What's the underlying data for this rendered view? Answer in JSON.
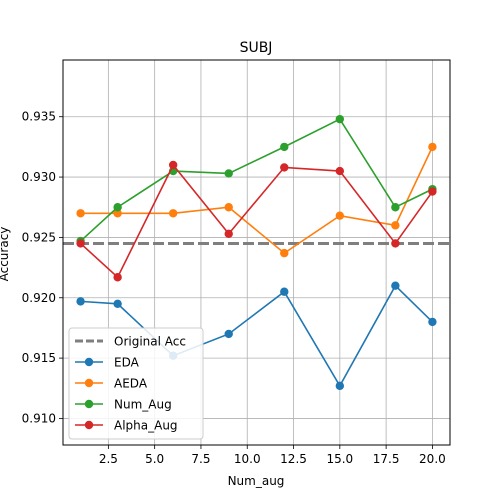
{
  "chart_data": {
    "type": "line",
    "title": "SUBJ",
    "xlabel": "Num_aug",
    "ylabel": "Accuracy",
    "xlim": [
      0.05,
      20.95
    ],
    "ylim": [
      0.9078,
      0.9397
    ],
    "grid": true,
    "legend_position": "lower-left",
    "x_ticks": [
      2.5,
      5.0,
      7.5,
      10.0,
      12.5,
      15.0,
      17.5,
      20.0
    ],
    "x_tick_labels": [
      "2.5",
      "5.0",
      "7.5",
      "10.0",
      "12.5",
      "15.0",
      "17.5",
      "20.0"
    ],
    "y_ticks": [
      0.91,
      0.915,
      0.92,
      0.925,
      0.93,
      0.935
    ],
    "y_tick_labels": [
      "0.910",
      "0.915",
      "0.920",
      "0.925",
      "0.930",
      "0.935"
    ],
    "x": [
      1,
      3,
      6,
      9,
      12,
      15,
      18,
      20
    ],
    "reference_line": {
      "name": "Original Acc",
      "value": 0.9245,
      "color": "#7f7f7f"
    },
    "series": [
      {
        "name": "EDA",
        "color": "#1f77b4",
        "values": [
          0.9197,
          0.9195,
          0.9152,
          0.917,
          0.9205,
          0.9127,
          0.921,
          0.918
        ]
      },
      {
        "name": "AEDA",
        "color": "#ff7f0e",
        "values": [
          0.927,
          0.927,
          0.927,
          0.9275,
          0.9237,
          0.9268,
          0.926,
          0.9325
        ]
      },
      {
        "name": "Num_Aug",
        "color": "#2ca02c",
        "values": [
          0.9247,
          0.9275,
          0.9305,
          0.9303,
          0.9325,
          0.9348,
          0.9275,
          0.929
        ]
      },
      {
        "name": "Alpha_Aug",
        "color": "#d62728",
        "values": [
          0.9245,
          0.9217,
          0.931,
          0.9253,
          0.9308,
          0.9305,
          0.9245,
          0.9288
        ]
      }
    ]
  }
}
